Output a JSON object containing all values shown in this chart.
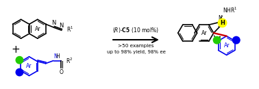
{
  "background_color": "#ffffff",
  "green_color": "#22cc00",
  "blue_color": "#0000ee",
  "yellow_color": "#ffff00",
  "red_color": "#cc0000",
  "black_color": "#000000",
  "figsize": [
    3.78,
    1.3
  ],
  "dpi": 100,
  "catalyst_text": "(R)-C5 (10 mol%)",
  "conditions1": ">50 examples",
  "conditions2": "up to 98% yield, 98% ee"
}
